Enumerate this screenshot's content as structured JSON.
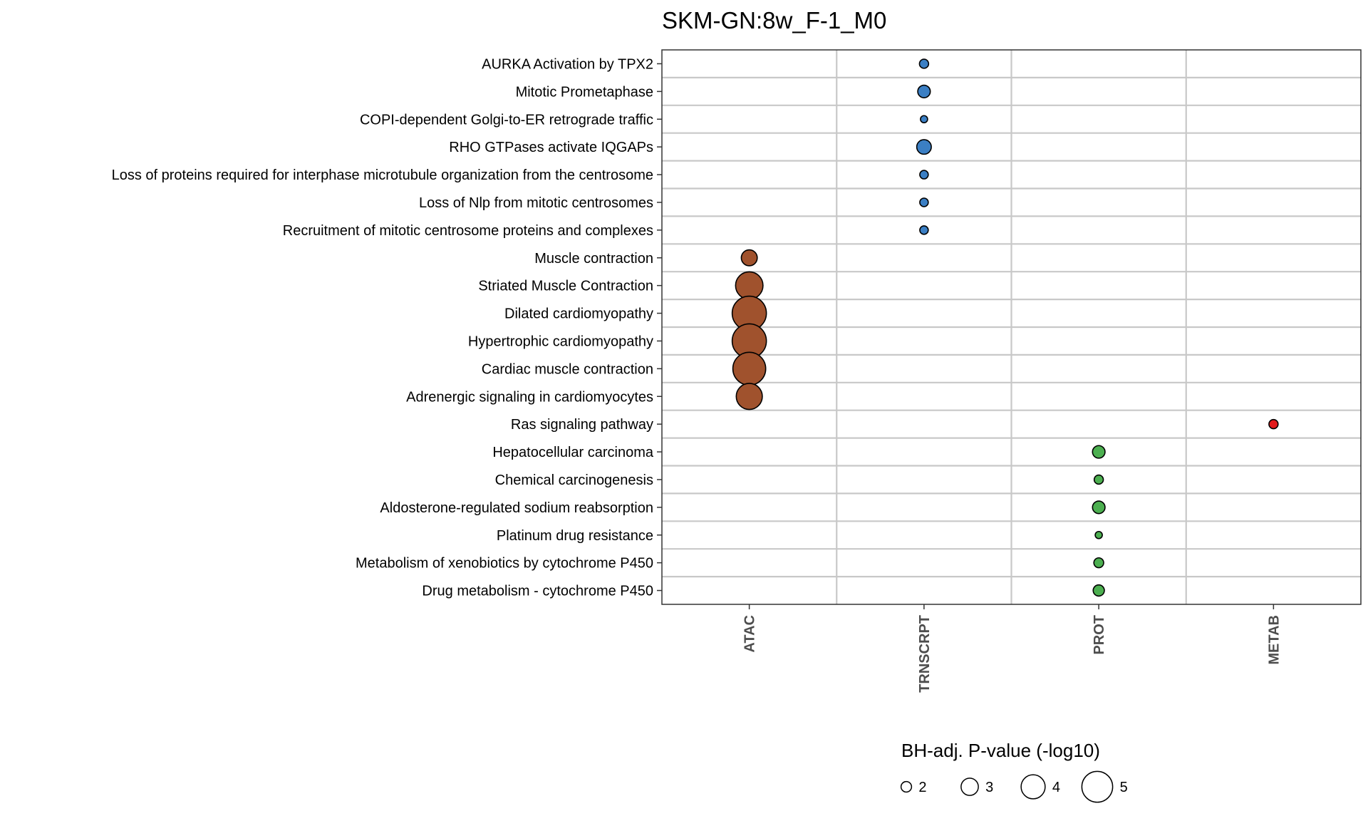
{
  "chart_data": {
    "type": "scatter",
    "title": "SKM-GN:8w_F-1_M0",
    "x_categories": [
      "ATAC",
      "TRNSCRPT",
      "PROT",
      "METAB"
    ],
    "y_categories": [
      "AURKA Activation by TPX2",
      "Mitotic Prometaphase",
      "COPI-dependent Golgi-to-ER retrograde traffic",
      "RHO GTPases activate IQGAPs",
      "Loss of proteins required for interphase microtubule organization from the centrosome",
      "Loss of Nlp from mitotic centrosomes",
      "Recruitment of mitotic centrosome proteins and complexes",
      "Muscle contraction",
      "Striated Muscle Contraction",
      "Dilated cardiomyopathy",
      "Hypertrophic cardiomyopathy",
      "Cardiac muscle contraction",
      "Adrenergic signaling in cardiomyocytes",
      "Ras signaling pathway",
      "Hepatocellular carcinoma",
      "Chemical carcinogenesis",
      "Aldosterone-regulated sodium reabsorption",
      "Platinum drug resistance",
      "Metabolism of xenobiotics by cytochrome P450",
      "Drug metabolism - cytochrome P450"
    ],
    "points": [
      {
        "y": "AURKA Activation by TPX2",
        "x": "TRNSCRPT",
        "value": 1.8
      },
      {
        "y": "Mitotic Prometaphase",
        "x": "TRNSCRPT",
        "value": 2.3
      },
      {
        "y": "COPI-dependent Golgi-to-ER retrograde traffic",
        "x": "TRNSCRPT",
        "value": 1.5
      },
      {
        "y": "RHO GTPases activate IQGAPs",
        "x": "TRNSCRPT",
        "value": 2.6
      },
      {
        "y": "Loss of proteins required for interphase microtubule organization from the centrosome",
        "x": "TRNSCRPT",
        "value": 1.7
      },
      {
        "y": "Loss of Nlp from mitotic centrosomes",
        "x": "TRNSCRPT",
        "value": 1.7
      },
      {
        "y": "Recruitment of mitotic centrosome proteins and complexes",
        "x": "TRNSCRPT",
        "value": 1.7
      },
      {
        "y": "Muscle contraction",
        "x": "ATAC",
        "value": 2.8
      },
      {
        "y": "Striated Muscle Contraction",
        "x": "ATAC",
        "value": 4.5
      },
      {
        "y": "Dilated cardiomyopathy",
        "x": "ATAC",
        "value": 5.5
      },
      {
        "y": "Hypertrophic cardiomyopathy",
        "x": "ATAC",
        "value": 5.5
      },
      {
        "y": "Cardiac muscle contraction",
        "x": "ATAC",
        "value": 5.3
      },
      {
        "y": "Adrenergic signaling in cardiomyocytes",
        "x": "ATAC",
        "value": 4.3
      },
      {
        "y": "Ras signaling pathway",
        "x": "METAB",
        "value": 1.8
      },
      {
        "y": "Hepatocellular carcinoma",
        "x": "PROT",
        "value": 2.3
      },
      {
        "y": "Chemical carcinogenesis",
        "x": "PROT",
        "value": 1.8
      },
      {
        "y": "Aldosterone-regulated sodium reabsorption",
        "x": "PROT",
        "value": 2.3
      },
      {
        "y": "Platinum drug resistance",
        "x": "PROT",
        "value": 1.5
      },
      {
        "y": "Metabolism of xenobiotics by cytochrome P450",
        "x": "PROT",
        "value": 1.9
      },
      {
        "y": "Drug metabolism - cytochrome P450",
        "x": "PROT",
        "value": 2.1
      }
    ],
    "colors": {
      "ATAC": "#a0522d",
      "TRNSCRPT": "#3b7fc4",
      "PROT": "#4caf50",
      "METAB": "#e31a1c"
    },
    "legend": {
      "title": "BH-adj. P-value (-log10)",
      "values": [
        2,
        3,
        4,
        5
      ],
      "position": "bottom"
    },
    "grid": true
  }
}
